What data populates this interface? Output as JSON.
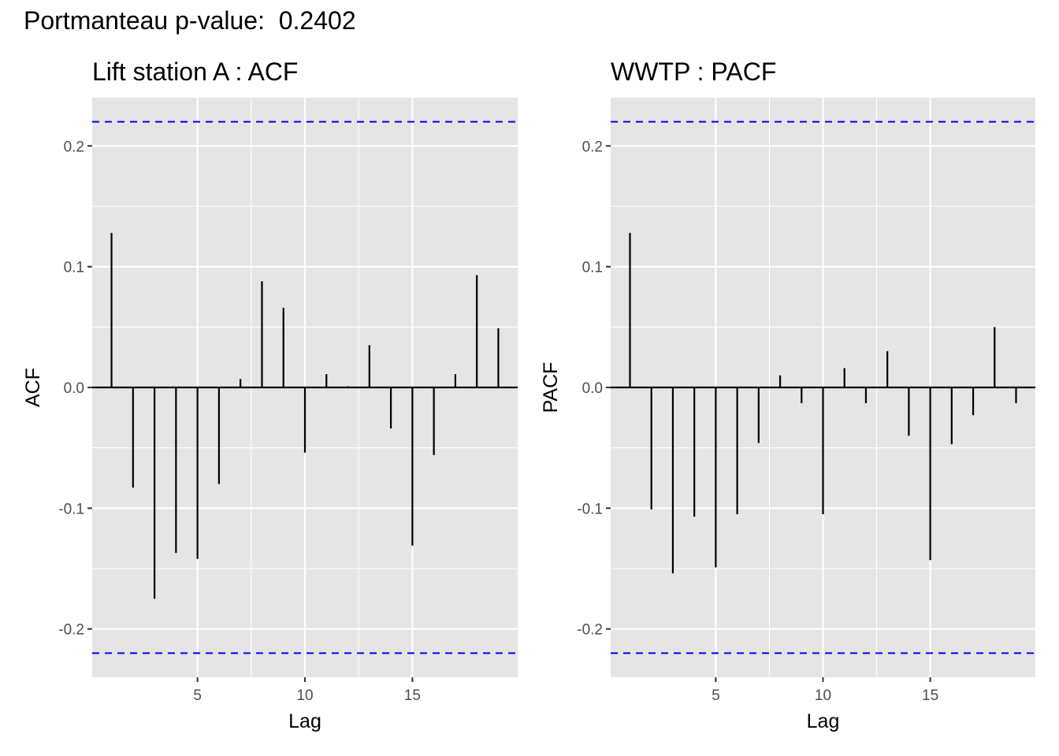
{
  "header": {
    "title": "Portmanteau p-value:  0.2402"
  },
  "chart_data": [
    {
      "type": "bar",
      "title": "Lift station A : ACF",
      "xlabel": "Lag",
      "ylabel": "ACF",
      "x": [
        1,
        2,
        3,
        4,
        5,
        6,
        7,
        8,
        9,
        10,
        11,
        12,
        13,
        14,
        15,
        16,
        17,
        18,
        19
      ],
      "values": [
        0.128,
        -0.083,
        -0.175,
        -0.137,
        -0.142,
        -0.08,
        0.007,
        0.088,
        0.066,
        -0.054,
        0.011,
        0.001,
        0.035,
        -0.034,
        -0.131,
        -0.056,
        0.011,
        0.093,
        0.049
      ],
      "ci_upper": 0.22,
      "ci_lower": -0.22,
      "xlim": [
        0.1,
        19.9
      ],
      "ylim": [
        -0.24,
        0.24
      ],
      "xticks": [
        5,
        10,
        15
      ],
      "xtick_labels": [
        "5",
        "10",
        "15"
      ],
      "yticks": [
        -0.2,
        -0.1,
        0.0,
        0.1,
        0.2
      ],
      "ytick_labels": [
        "-0.2",
        "-0.1",
        "0.0",
        "0.1",
        "0.2"
      ],
      "grid": true,
      "colors": {
        "panel": "#e5e5e5",
        "grid": "#ffffff",
        "bar": "#000000",
        "ci": "#0000ff"
      }
    },
    {
      "type": "bar",
      "title": "WWTP : PACF",
      "xlabel": "Lag",
      "ylabel": "PACF",
      "x": [
        1,
        2,
        3,
        4,
        5,
        6,
        7,
        8,
        9,
        10,
        11,
        12,
        13,
        14,
        15,
        16,
        17,
        18,
        19
      ],
      "values": [
        0.128,
        -0.101,
        -0.154,
        -0.107,
        -0.149,
        -0.105,
        -0.046,
        0.01,
        -0.013,
        -0.105,
        0.016,
        -0.013,
        0.03,
        -0.04,
        -0.143,
        -0.047,
        -0.023,
        0.05,
        -0.013
      ],
      "ci_upper": 0.22,
      "ci_lower": -0.22,
      "xlim": [
        0.1,
        19.9
      ],
      "ylim": [
        -0.24,
        0.24
      ],
      "xticks": [
        5,
        10,
        15
      ],
      "xtick_labels": [
        "5",
        "10",
        "15"
      ],
      "yticks": [
        -0.2,
        -0.1,
        0.0,
        0.1,
        0.2
      ],
      "ytick_labels": [
        "-0.2",
        "-0.1",
        "0.0",
        "0.1",
        "0.2"
      ],
      "grid": true,
      "colors": {
        "panel": "#e5e5e5",
        "grid": "#ffffff",
        "bar": "#000000",
        "ci": "#0000ff"
      }
    }
  ]
}
